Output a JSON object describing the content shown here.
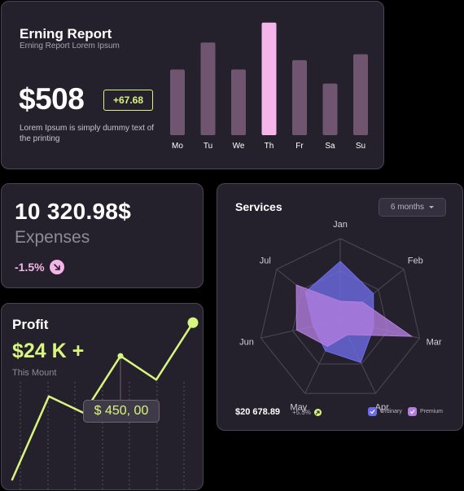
{
  "earning": {
    "title": "Erning Report",
    "subtitle": "Erning Report Lorem Ipsum",
    "amount": "$508",
    "change_badge": "+67.68",
    "description": "Lorem Ipsum is simply dummy text of the printing"
  },
  "expenses": {
    "total": "10 320.98$",
    "label": "Expenses",
    "change": "-1.5%",
    "change_icon": "arrow-down-right-icon"
  },
  "profit": {
    "title": "Profit",
    "value": "$24 K +",
    "subtitle": "This Mount",
    "tooltip": "$ 450, 00"
  },
  "services": {
    "title": "Services",
    "period_select": "6 months",
    "total": "$20 678.89",
    "change": "+5.5%",
    "legend": [
      {
        "label": "Ordinary",
        "color": "#6e6de8"
      },
      {
        "label": "Premium",
        "color": "#b37ee0"
      }
    ]
  },
  "colors": {
    "background": "#000000",
    "card": "#25212c",
    "accent_lime": "#d9f57f",
    "accent_pink": "#f5b5ea",
    "bar_muted": "#6f5570",
    "ordinary": "#6e6de8",
    "premium": "#b37ee0"
  },
  "chart_data": [
    {
      "type": "bar",
      "categories": [
        "Mo",
        "Tu",
        "We",
        "Th",
        "Fr",
        "Sa",
        "Su"
      ],
      "values": [
        56,
        79,
        56,
        96,
        64,
        44,
        69
      ],
      "highlight_index": 3,
      "ylim": [
        0,
        100
      ],
      "grid": false
    },
    {
      "type": "line",
      "x": [
        0,
        1,
        2,
        3,
        4,
        5
      ],
      "values": [
        0,
        35,
        28,
        52,
        42,
        66
      ],
      "highlight_index": 3,
      "ylim": [
        0,
        100
      ],
      "grid": false
    },
    {
      "type": "radar",
      "categories": [
        "Jan",
        "Feb",
        "Mar",
        "Apr",
        "May",
        "Jun",
        "Jul"
      ],
      "rlim": [
        0,
        100
      ],
      "series": [
        {
          "name": "Ordinary",
          "values": [
            72,
            52,
            42,
            58,
            42,
            34,
            55
          ]
        },
        {
          "name": "Premium",
          "values": [
            23,
            35,
            90,
            20,
            36,
            55,
            69
          ]
        }
      ],
      "legend": "bottom-right"
    }
  ]
}
